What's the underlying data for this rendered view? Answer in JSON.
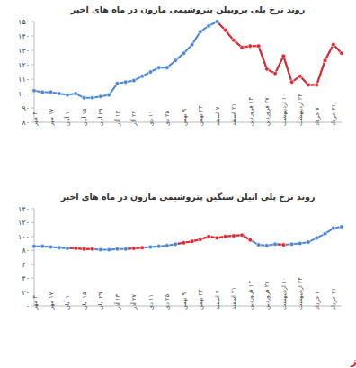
{
  "chart_data": [
    {
      "type": "line",
      "title": "روند نرخ پلی پروپیلن پتروشیمی مارون در ماه های اخیر",
      "categories": [
        "۳ مهر",
        null,
        "۱۷ مهر",
        null,
        "۱ آبان",
        null,
        "۱۵ آبان",
        null,
        "۲۹ آبان",
        null,
        "۱۳ آذر",
        null,
        "۲۷ آذر",
        null,
        "۱۱ دی",
        null,
        "۲۵ دی",
        null,
        "۹ بهمن",
        null,
        "۲۳ بهمن",
        null,
        "۷ اسفند",
        null,
        "۲۱ اسفند",
        null,
        "۱۳ فروردین",
        null,
        "۲۷ فروردین",
        null,
        "۱۰ اردیبهشت",
        null,
        "۲۴ اردیبهشت",
        null,
        "۷ خرداد",
        null,
        "۲۱ خرداد",
        null
      ],
      "series": [
        {
          "color": "#4a86d6",
          "marker": "circle",
          "colors": [
            "#4a86d6",
            "#4a86d6",
            "#4a86d6",
            "#4a86d6",
            "#4a86d6",
            "#4a86d6",
            "#4a86d6",
            "#4a86d6",
            "#4a86d6",
            "#4a86d6",
            "#4a86d6",
            "#4a86d6",
            "#4a86d6",
            "#4a86d6",
            "#4a86d6",
            "#4a86d6",
            "#4a86d6",
            "#4a86d6",
            "#4a86d6",
            "#4a86d6",
            "#4a86d6",
            "#4a86d6",
            "#4a86d6",
            "#e8262a",
            "#e8262a",
            "#e8262a",
            "#e8262a",
            "#e8262a",
            "#e8262a",
            "#e8262a",
            "#e8262a",
            "#e8262a",
            "#e8262a",
            "#e8262a",
            "#e8262a",
            "#e8262a",
            "#e8262a",
            "#e8262a"
          ],
          "values": [
            102,
            101,
            101,
            100,
            99,
            100,
            97,
            97,
            98,
            99,
            107,
            108,
            109,
            112,
            115,
            118,
            118,
            123,
            128,
            134,
            143,
            147,
            150,
            144,
            137,
            132,
            133,
            133,
            117,
            114,
            126,
            108,
            112,
            106,
            106,
            123,
            134,
            128
          ]
        }
      ],
      "ylim": [
        80,
        150
      ],
      "yticks": [
        {
          "value": 80,
          "label": "۸۰"
        },
        {
          "value": 90,
          "label": "۹۰"
        },
        {
          "value": 100,
          "label": "۱۰۰"
        },
        {
          "value": 110,
          "label": "۱۱۰"
        },
        {
          "value": 120,
          "label": "۱۲۰"
        },
        {
          "value": 130,
          "label": "۱۳۰"
        },
        {
          "value": 140,
          "label": "۱۴۰"
        },
        {
          "value": 150,
          "label": "۱۵۰"
        }
      ],
      "grid": false
    },
    {
      "type": "line",
      "title": "روند نرخ پلی اتیلن سنگین پتروشیمی مارون در ماه های اخیر",
      "categories": [
        "۳ مهر",
        null,
        "۱۷ مهر",
        null,
        "۱ آبان",
        null,
        "۱۵ آبان",
        null,
        "۲۹ آبان",
        null,
        "۱۳ آذر",
        null,
        "۲۷ آذر",
        null,
        "۱۱ دی",
        null,
        "۲۵ دی",
        null,
        "۹ بهمن",
        null,
        "۲۳ بهمن",
        null,
        "۷ اسفند",
        null,
        "۲۱ اسفند",
        null,
        "۱۳ فروردین",
        null,
        "۲۷ فروردین",
        null,
        "۱۰ اردیبهشت",
        null,
        "۲۴ اردیبهشت",
        null,
        "۷ خرداد",
        null,
        "۲۱ خرداد",
        null
      ],
      "series": [
        {
          "color": "#4a86d6",
          "marker": "circle",
          "colors": [
            "#4a86d6",
            "#4a86d6",
            "#4a86d6",
            "#4a86d6",
            "#4a86d6",
            "#e8262a",
            "#e8262a",
            "#e8262a",
            "#4a86d6",
            "#4a86d6",
            "#4a86d6",
            "#4a86d6",
            "#e8262a",
            "#e8262a",
            "#4a86d6",
            "#4a86d6",
            "#4a86d6",
            "#4a86d6",
            "#e8262a",
            "#e8262a",
            "#e8262a",
            "#e8262a",
            "#e8262a",
            "#e8262a",
            "#e8262a",
            "#e8262a",
            "#e8262a",
            "#4a86d6",
            "#4a86d6",
            "#4a86d6",
            "#e8262a",
            "#4a86d6",
            "#4a86d6",
            "#4a86d6",
            "#4a86d6",
            "#4a86d6",
            "#4a86d6",
            "#4a86d6"
          ],
          "values": [
            86,
            86,
            85,
            84,
            83,
            83,
            82,
            82,
            81,
            81,
            82,
            82,
            83,
            84,
            85,
            86,
            87,
            89,
            91,
            93,
            96,
            100,
            98,
            100,
            101,
            102,
            95,
            88,
            87,
            89,
            88,
            89,
            90,
            92,
            98,
            104,
            112,
            114
          ]
        }
      ],
      "ylim": [
        0,
        140
      ],
      "yticks": [
        {
          "value": 0,
          "label": "۰"
        },
        {
          "value": 20,
          "label": "۲۰"
        },
        {
          "value": 40,
          "label": "۴۰"
        },
        {
          "value": 60,
          "label": "۶۰"
        },
        {
          "value": 80,
          "label": "۸۰"
        },
        {
          "value": 100,
          "label": "۱۰۰"
        },
        {
          "value": 120,
          "label": "۱۲۰"
        },
        {
          "value": 140,
          "label": "۱۴۰"
        }
      ],
      "grid": false
    }
  ],
  "footer": "بورس نیوز"
}
